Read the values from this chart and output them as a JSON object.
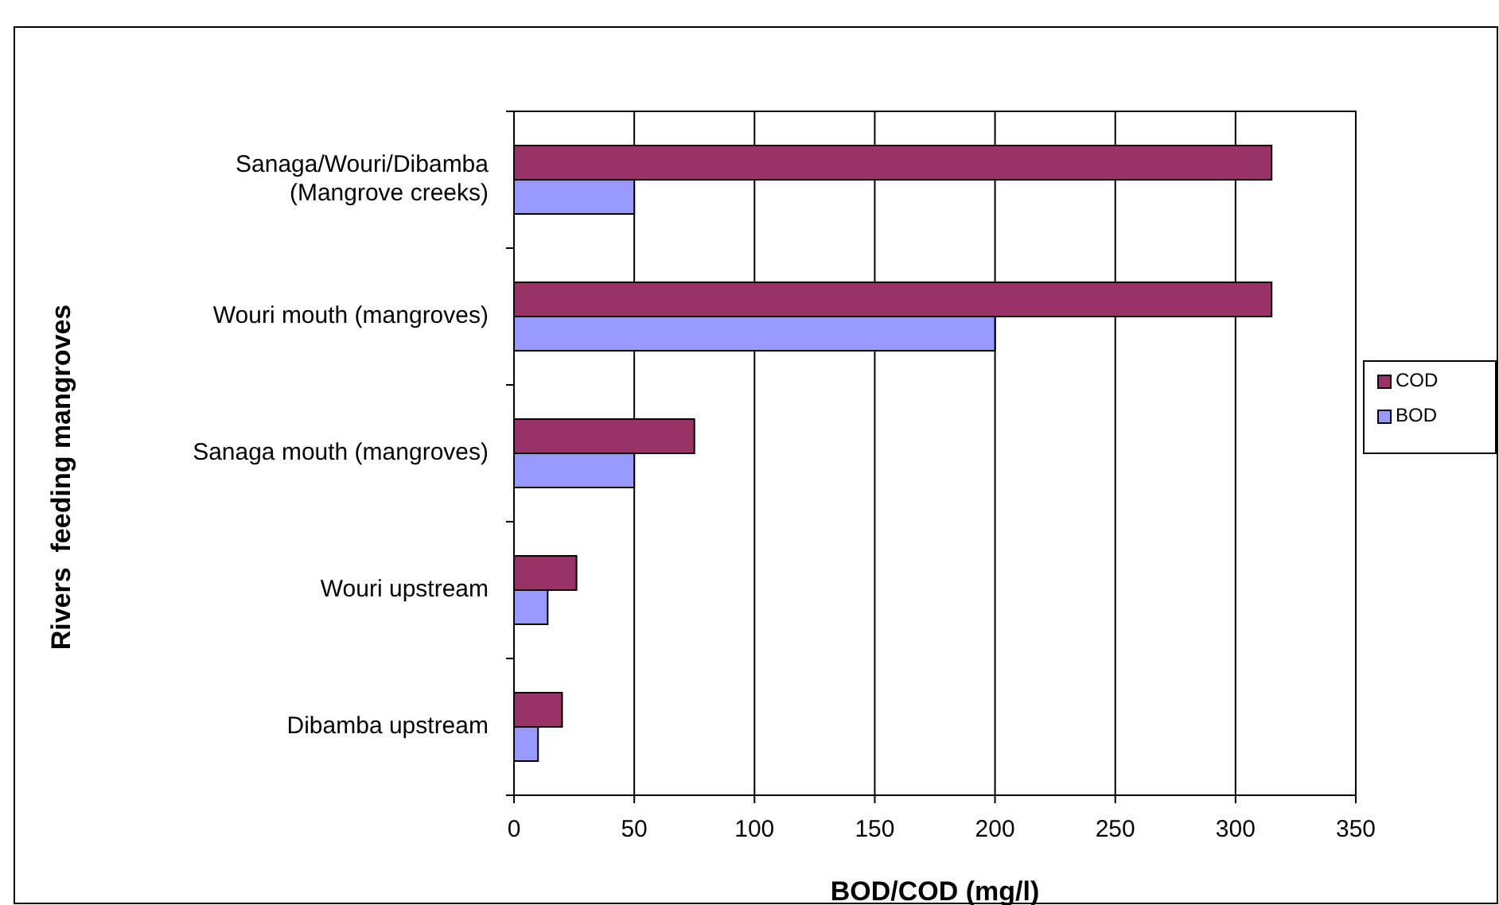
{
  "chart_data": {
    "type": "bar",
    "orientation": "horizontal",
    "xlabel": "BOD/COD (mg/l)",
    "ylabel": "Rivers  feeding mangroves",
    "categories": [
      "Sanaga/Wouri/Dibamba\n(Mangrove creeks)",
      "Wouri mouth (mangroves)",
      "Sanaga mouth (mangroves)",
      "Wouri upstream",
      "Dibamba upstream"
    ],
    "series": [
      {
        "name": "COD",
        "color": "#993366",
        "values": [
          315,
          315,
          75,
          26,
          20
        ]
      },
      {
        "name": "BOD",
        "color": "#9999ff",
        "values": [
          50,
          200,
          50,
          14,
          10
        ]
      }
    ],
    "xlim": [
      0,
      350
    ],
    "xticks": [
      0,
      50,
      100,
      150,
      200,
      250,
      300,
      350
    ],
    "grid": "x",
    "legend": "right"
  }
}
